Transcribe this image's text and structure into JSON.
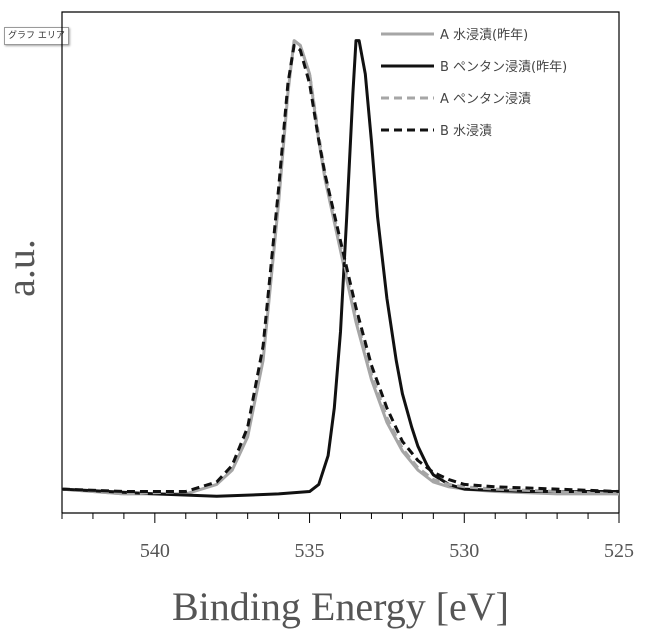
{
  "tooltip": {
    "text": "グラフ エリア"
  },
  "chart_data": {
    "type": "line",
    "xlabel": "Binding Energy [eV]",
    "ylabel": "a.u.",
    "xlim": [
      543,
      525
    ],
    "x_reversed": true,
    "ylim": [
      0,
      1.05
    ],
    "x_ticks": [
      540,
      535,
      530,
      525
    ],
    "minor_tick_step": 1,
    "grid": false,
    "legend_position": "top-right",
    "series": [
      {
        "name": "A 水浸漬(昨年)",
        "color": "#a6a6a6",
        "dash": "solid",
        "x": [
          543,
          541,
          539,
          538,
          537.5,
          537,
          536.5,
          536,
          535.7,
          535.5,
          535.3,
          535,
          534.7,
          534.5,
          534,
          533.5,
          533,
          532.5,
          532,
          531.5,
          531,
          530.5,
          530,
          529,
          527,
          525
        ],
        "y": [
          0.05,
          0.04,
          0.04,
          0.06,
          0.09,
          0.16,
          0.32,
          0.65,
          0.88,
          0.99,
          0.98,
          0.92,
          0.78,
          0.7,
          0.55,
          0.4,
          0.28,
          0.19,
          0.13,
          0.09,
          0.065,
          0.055,
          0.05,
          0.045,
          0.04,
          0.04
        ]
      },
      {
        "name": "B ペンタン浸漬(昨年)",
        "color": "#111111",
        "dash": "solid",
        "x": [
          543,
          540,
          538,
          536,
          535,
          534.7,
          534.4,
          534.2,
          534,
          533.8,
          533.6,
          533.5,
          533.4,
          533.2,
          533,
          532.8,
          532.5,
          532.2,
          532,
          531.7,
          531.5,
          531.2,
          531,
          530.5,
          530,
          528,
          525
        ],
        "y": [
          0.05,
          0.04,
          0.035,
          0.04,
          0.045,
          0.06,
          0.12,
          0.22,
          0.38,
          0.62,
          0.88,
          0.99,
          0.99,
          0.92,
          0.78,
          0.62,
          0.45,
          0.32,
          0.25,
          0.18,
          0.14,
          0.1,
          0.08,
          0.06,
          0.05,
          0.045,
          0.045
        ]
      },
      {
        "name": "A ペンタン浸漬",
        "color": "#a6a6a6",
        "dash": "dashed",
        "x": [
          543,
          541,
          539,
          538,
          537.5,
          537,
          536.5,
          536,
          535.7,
          535.5,
          535.3,
          535,
          534.7,
          534.5,
          534,
          533.5,
          533,
          532.5,
          532,
          531.5,
          531,
          530.5,
          530,
          529,
          527,
          525
        ],
        "y": [
          0.05,
          0.04,
          0.045,
          0.065,
          0.095,
          0.17,
          0.33,
          0.66,
          0.89,
          0.99,
          0.98,
          0.92,
          0.79,
          0.71,
          0.56,
          0.41,
          0.29,
          0.2,
          0.135,
          0.095,
          0.07,
          0.06,
          0.055,
          0.05,
          0.045,
          0.04
        ]
      },
      {
        "name": "B 水浸漬",
        "color": "#111111",
        "dash": "dashed",
        "x": [
          543,
          541,
          539,
          538,
          537.5,
          537,
          536.5,
          536,
          535.7,
          535.5,
          535.3,
          535,
          534.7,
          534.5,
          534,
          533.5,
          533,
          532.5,
          532,
          531.5,
          531,
          530.5,
          530,
          529,
          527,
          525
        ],
        "y": [
          0.05,
          0.045,
          0.045,
          0.065,
          0.1,
          0.18,
          0.35,
          0.68,
          0.9,
          0.98,
          0.97,
          0.9,
          0.78,
          0.71,
          0.57,
          0.43,
          0.31,
          0.22,
          0.15,
          0.11,
          0.085,
          0.07,
          0.06,
          0.055,
          0.05,
          0.045
        ]
      }
    ]
  }
}
